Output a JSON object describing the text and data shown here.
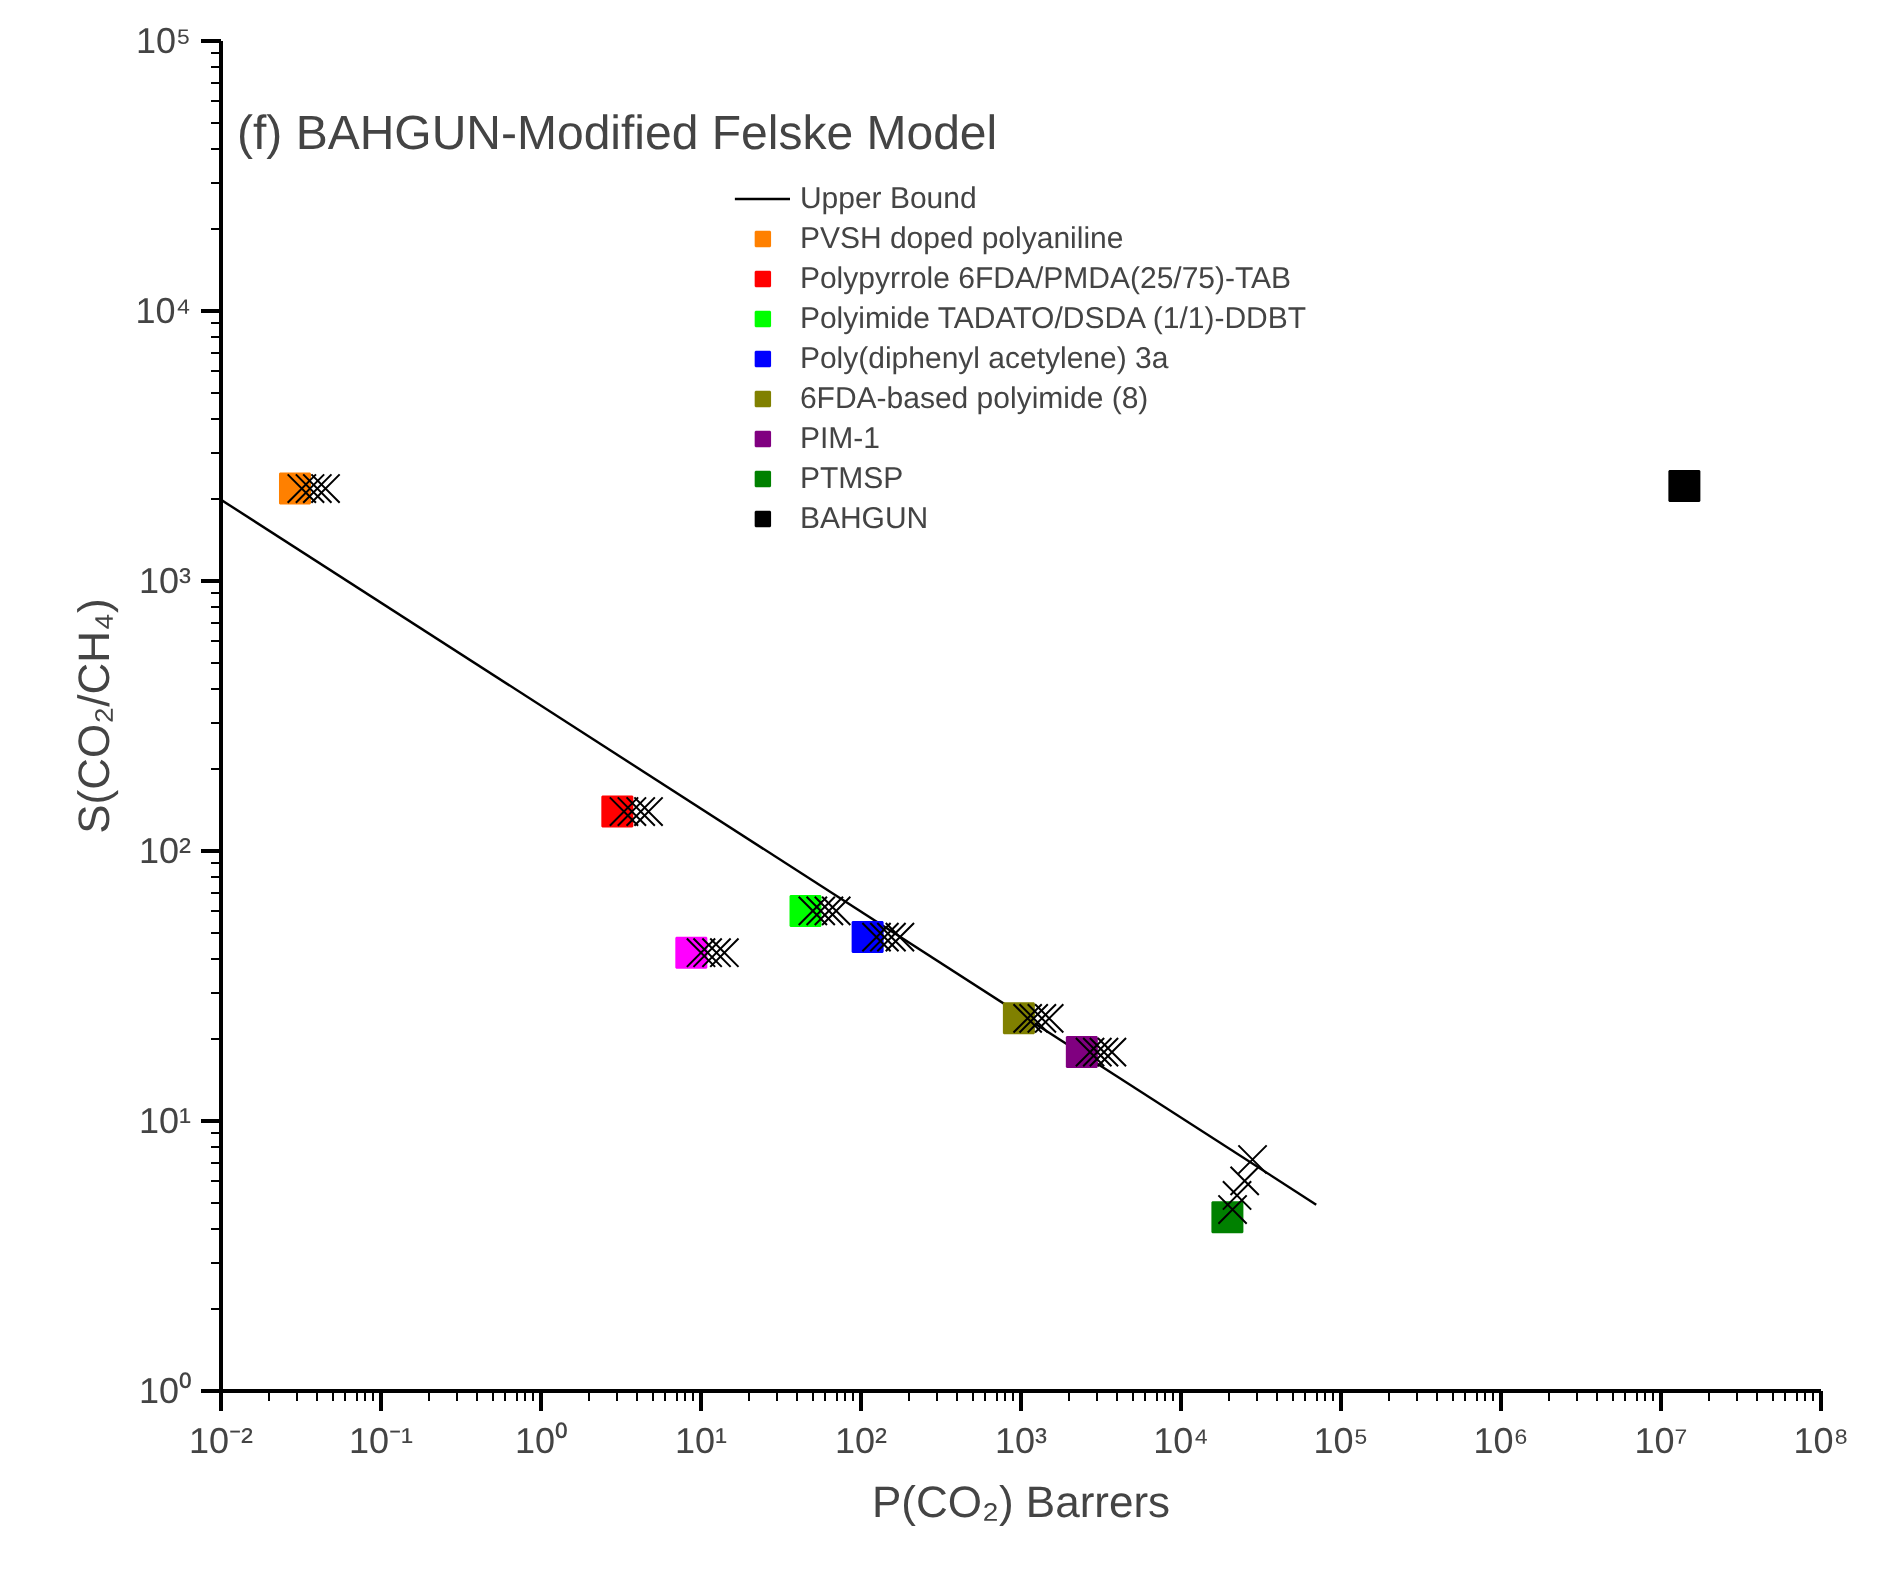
{
  "chart_data": {
    "type": "scatter",
    "title": "(f) BAHGUN-Modified Felske Model",
    "xlabel": "P(CO₂) Barrers",
    "ylabel": "S(CO₂/CH₄)",
    "log": "xy",
    "grid": false,
    "legend": "top",
    "marker": "square",
    "xlim": [
      0.01,
      100000000
    ],
    "ylim": [
      1,
      100000
    ],
    "xticks": [
      {
        "value": 0.01,
        "label": "10⁻²"
      },
      {
        "value": 0.1,
        "label": "10⁻¹"
      },
      {
        "value": 1,
        "label": "10⁰"
      },
      {
        "value": 10,
        "label": "10¹"
      },
      {
        "value": 100,
        "label": "10²"
      },
      {
        "value": 1000,
        "label": "10³"
      },
      {
        "value": 10000,
        "label": "10⁴"
      },
      {
        "value": 100000,
        "label": "10⁵"
      },
      {
        "value": 1000000,
        "label": "10⁶"
      },
      {
        "value": 10000000,
        "label": "10⁷"
      },
      {
        "value": 100000000,
        "label": "10⁸"
      }
    ],
    "yticks": [
      {
        "value": 1,
        "label": "10⁰"
      },
      {
        "value": 10,
        "label": "10¹"
      },
      {
        "value": 100,
        "label": "10²"
      },
      {
        "value": 1000,
        "label": "10³"
      },
      {
        "value": 10000,
        "label": "10⁴"
      },
      {
        "value": 100000,
        "label": "10⁵"
      }
    ],
    "series": [
      {
        "name": "Upper Bound",
        "type": "line",
        "line_style": "solid",
        "marker": "none",
        "color": "#000000",
        "x": [
          0.01,
          70000
        ],
        "values": [
          2000,
          4.9
        ]
      },
      {
        "name": "PVSH doped polyaniline",
        "color": "#ff8000",
        "x": [
          0.029
        ],
        "values": [
          2200
        ]
      },
      {
        "name": "Polypyrrole 6FDA/PMDA(25/75)-TAB",
        "color": "#ff0000",
        "x": [
          3.0
        ],
        "values": [
          140
        ]
      },
      {
        "name": "Polyimide TADATO/DSDA (1/1)-DDBT",
        "color": "#00ff00",
        "x": [
          45
        ],
        "values": [
          60
        ]
      },
      {
        "name": "Poly(diphenyl acetylene) 3a",
        "color": "#0000ff",
        "x": [
          110
        ],
        "values": [
          48
        ]
      },
      {
        "color": "#ff00ff",
        "x": [
          8.7
        ],
        "values": [
          42
        ]
      },
      {
        "name": "6FDA-based polyimide (8)",
        "color": "#808000",
        "x": [
          970
        ],
        "values": [
          24
        ]
      },
      {
        "name": "PIM-1",
        "color": "#800080",
        "x": [
          2400
        ],
        "values": [
          18
        ]
      },
      {
        "name": "PTMSP",
        "color": "#008000",
        "x": [
          19500
        ],
        "values": [
          4.4
        ]
      },
      {
        "name": "BAHGUN",
        "color": "#000000",
        "x": [
          14000000
        ],
        "values": [
          2250
        ]
      },
      {
        "color": "#000000",
        "marker": "cross",
        "x": [
          0.032,
          0.036,
          0.04,
          0.045,
          3.3,
          3.7,
          4.2,
          4.7,
          10,
          11,
          12.5,
          14,
          50,
          56,
          63,
          70,
          125,
          140,
          155,
          175,
          1100,
          1200,
          1350,
          1500,
          2700,
          3000,
          3300,
          3700,
          21000,
          22400,
          25000,
          28000
        ],
        "values": [
          2200,
          2200,
          2200,
          2200,
          140,
          140,
          140,
          140,
          42,
          42,
          42,
          42,
          60,
          60,
          60,
          60,
          48,
          48,
          48,
          48,
          24,
          24,
          24,
          24,
          18,
          18,
          18,
          18,
          4.7,
          5.3,
          6.0,
          7.2
        ]
      }
    ]
  }
}
